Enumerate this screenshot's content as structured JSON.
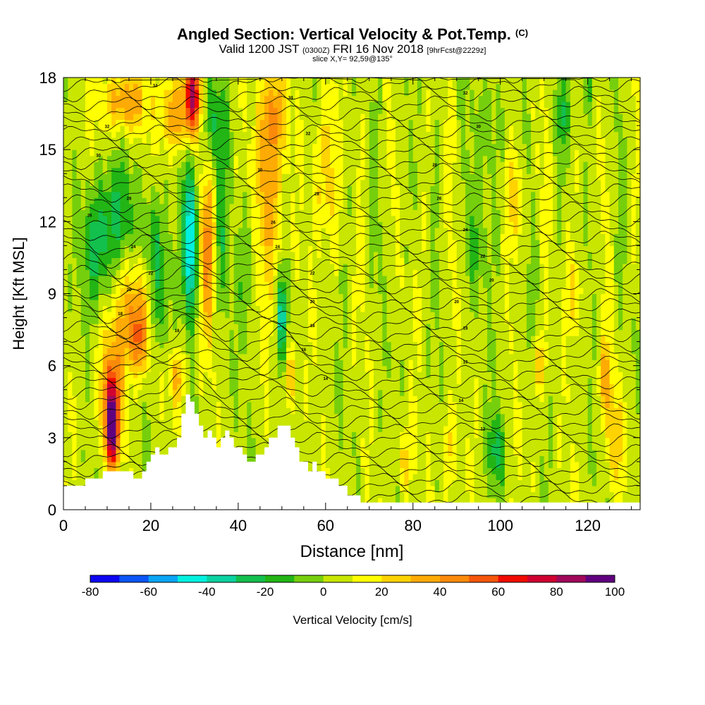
{
  "header": {
    "title": "Angled Section: Vertical Velocity & Pot.Temp.",
    "title_unit": "(C)",
    "valid_prefix": "Valid 1200 JST",
    "valid_utc": "(0300Z)",
    "valid_date": "FRI 16 Nov 2018",
    "forecast_info": "[9hrFcst@2229z]",
    "slice_info": "slice X,Y= 92,59@135°"
  },
  "chart_data": {
    "type": "heatmap",
    "xlabel": "Distance [nm]",
    "ylabel": "Height [Kft MSL]",
    "xlim": [
      0,
      132
    ],
    "ylim": [
      0,
      18
    ],
    "x_ticks": [
      0,
      20,
      40,
      60,
      80,
      100,
      120
    ],
    "y_ticks": [
      0,
      3,
      6,
      9,
      12,
      15,
      18
    ],
    "colorbar": {
      "label": "Vertical Velocity [cm/s]",
      "tick_values": [
        -80,
        -60,
        -40,
        -20,
        0,
        20,
        40,
        60,
        80,
        100
      ],
      "range": [
        -80,
        100
      ],
      "step": 10,
      "colors": [
        "#0d05f0",
        "#0a55f5",
        "#0aa5f5",
        "#00f0e0",
        "#0ad2a0",
        "#13c04e",
        "#22b515",
        "#76cf0c",
        "#c8e600",
        "#ffff00",
        "#ffd300",
        "#ffab05",
        "#fb8a0a",
        "#f5560a",
        "#f00a00",
        "#d00030",
        "#a0085a",
        "#60007e"
      ]
    },
    "terrain": {
      "note": "white area = terrain; height in Kft at each distance (nm)",
      "points": [
        [
          0,
          1
        ],
        [
          5,
          1
        ],
        [
          5,
          1.3
        ],
        [
          9,
          1.3
        ],
        [
          9,
          1.6
        ],
        [
          16,
          1.6
        ],
        [
          16,
          1.3
        ],
        [
          18,
          1.3
        ],
        [
          18,
          1.6
        ],
        [
          19,
          1.6
        ],
        [
          19,
          2
        ],
        [
          20,
          2
        ],
        [
          20,
          2.3
        ],
        [
          21,
          2.3
        ],
        [
          21,
          2.6
        ],
        [
          22,
          2.6
        ],
        [
          22,
          2.3
        ],
        [
          24,
          2.3
        ],
        [
          24,
          2.6
        ],
        [
          26,
          2.6
        ],
        [
          26,
          3
        ],
        [
          27,
          3
        ],
        [
          27,
          4
        ],
        [
          28,
          4
        ],
        [
          28,
          4.8
        ],
        [
          29,
          4.8
        ],
        [
          29,
          4.5
        ],
        [
          30,
          4.5
        ],
        [
          30,
          4
        ],
        [
          31,
          4
        ],
        [
          31,
          3.5
        ],
        [
          32,
          3.5
        ],
        [
          32,
          3
        ],
        [
          33,
          3
        ],
        [
          33,
          3.3
        ],
        [
          34,
          3.3
        ],
        [
          34,
          3
        ],
        [
          35,
          3
        ],
        [
          35,
          2.6
        ],
        [
          36,
          2.6
        ],
        [
          36,
          3
        ],
        [
          37,
          3
        ],
        [
          37,
          3.3
        ],
        [
          38,
          3.3
        ],
        [
          38,
          3
        ],
        [
          39,
          3
        ],
        [
          39,
          2.6
        ],
        [
          41,
          2.6
        ],
        [
          41,
          2.3
        ],
        [
          42,
          2.3
        ],
        [
          42,
          2
        ],
        [
          44,
          2
        ],
        [
          44,
          2.3
        ],
        [
          46,
          2.3
        ],
        [
          46,
          2.6
        ],
        [
          47,
          2.6
        ],
        [
          47,
          3
        ],
        [
          49,
          3
        ],
        [
          49,
          3.5
        ],
        [
          52,
          3.5
        ],
        [
          52,
          3
        ],
        [
          53,
          3
        ],
        [
          53,
          2.6
        ],
        [
          54,
          2.6
        ],
        [
          54,
          2
        ],
        [
          56,
          2
        ],
        [
          56,
          1.6
        ],
        [
          57,
          1.6
        ],
        [
          57,
          2
        ],
        [
          58,
          2
        ],
        [
          58,
          1.6
        ],
        [
          60,
          1.6
        ],
        [
          60,
          1.3
        ],
        [
          63,
          1.3
        ],
        [
          63,
          1
        ],
        [
          65,
          1
        ],
        [
          65,
          0.6
        ],
        [
          68,
          0.6
        ],
        [
          68,
          0.3
        ],
        [
          132,
          0.3
        ]
      ]
    },
    "velocity_features": [
      {
        "x": 11,
        "y": 3.5,
        "value": 85,
        "sx": 1.6,
        "sy": 1.8
      },
      {
        "x": 11,
        "y": 5.5,
        "value": 30,
        "sx": 3,
        "sy": 2.5
      },
      {
        "x": 16,
        "y": 8.5,
        "value": 30,
        "sx": 3.5,
        "sy": 2
      },
      {
        "x": 17,
        "y": 7,
        "value": 35,
        "sx": 2.5,
        "sy": 1.5
      },
      {
        "x": 8,
        "y": 11,
        "value": -30,
        "sx": 3.5,
        "sy": 2.5
      },
      {
        "x": 13,
        "y": 12.5,
        "value": -22,
        "sx": 4,
        "sy": 2
      },
      {
        "x": 22,
        "y": 9,
        "value": -28,
        "sx": 2,
        "sy": 2.5
      },
      {
        "x": 20,
        "y": 11.5,
        "value": -22,
        "sx": 2,
        "sy": 1.8
      },
      {
        "x": 29,
        "y": 10.5,
        "value": -50,
        "sx": 1.6,
        "sy": 2.5
      },
      {
        "x": 29,
        "y": 13,
        "value": -28,
        "sx": 1.6,
        "sy": 2
      },
      {
        "x": 29.5,
        "y": 17.2,
        "value": 75,
        "sx": 1.8,
        "sy": 1.5
      },
      {
        "x": 25,
        "y": 16.5,
        "value": 35,
        "sx": 3,
        "sy": 1.5
      },
      {
        "x": 14,
        "y": 17,
        "value": 35,
        "sx": 5,
        "sy": 1.2
      },
      {
        "x": 33,
        "y": 11,
        "value": 38,
        "sx": 1.8,
        "sy": 3.5
      },
      {
        "x": 36,
        "y": 11,
        "value": -20,
        "sx": 1.6,
        "sy": 3
      },
      {
        "x": 42,
        "y": 10,
        "value": -18,
        "sx": 1.8,
        "sy": 2.5
      },
      {
        "x": 47,
        "y": 13,
        "value": 32,
        "sx": 2.8,
        "sy": 4
      },
      {
        "x": 50,
        "y": 8,
        "value": -38,
        "sx": 1.3,
        "sy": 1.8
      },
      {
        "x": 52,
        "y": 5.5,
        "value": 25,
        "sx": 1.3,
        "sy": 1.5
      },
      {
        "x": 35,
        "y": 16,
        "value": -25,
        "sx": 3,
        "sy": 2
      },
      {
        "x": 48,
        "y": 16.5,
        "value": 30,
        "sx": 3,
        "sy": 1.8
      },
      {
        "x": 26,
        "y": 5.5,
        "value": 30,
        "sx": 1.5,
        "sy": 1.2
      },
      {
        "x": 60,
        "y": 14,
        "value": 20,
        "sx": 3,
        "sy": 3
      },
      {
        "x": 97,
        "y": 16,
        "value": -18,
        "sx": 2,
        "sy": 2.5
      },
      {
        "x": 95,
        "y": 11,
        "value": -15,
        "sx": 2.5,
        "sy": 2
      },
      {
        "x": 104,
        "y": 13,
        "value": 18,
        "sx": 2,
        "sy": 2
      },
      {
        "x": 99,
        "y": 2.5,
        "value": -30,
        "sx": 1.8,
        "sy": 1.5
      },
      {
        "x": 88,
        "y": 2.5,
        "value": 20,
        "sx": 1.5,
        "sy": 1.8
      },
      {
        "x": 78,
        "y": 2,
        "value": 20,
        "sx": 1.5,
        "sy": 1.5
      },
      {
        "x": 109,
        "y": 6,
        "value": 25,
        "sx": 1.5,
        "sy": 1.2
      },
      {
        "x": 124,
        "y": 5.5,
        "value": 28,
        "sx": 1.5,
        "sy": 1.5
      },
      {
        "x": 126,
        "y": 3,
        "value": 22,
        "sx": 2,
        "sy": 2
      },
      {
        "x": 117,
        "y": 9,
        "value": 20,
        "sx": 2,
        "sy": 1.5
      },
      {
        "x": 114,
        "y": 16.5,
        "value": -18,
        "sx": 2,
        "sy": 1.5
      },
      {
        "x": 120,
        "y": 17.5,
        "value": -15,
        "sx": 2,
        "sy": 1
      }
    ],
    "isentropes": {
      "series": [
        "theta-isentropes"
      ],
      "labels": [
        {
          "x": 21,
          "y": 17.6,
          "text": "34"
        },
        {
          "x": 52,
          "y": 17.1,
          "text": "34"
        },
        {
          "x": 92,
          "y": 17.3,
          "text": "32"
        },
        {
          "x": 10,
          "y": 15.9,
          "text": "32"
        },
        {
          "x": 56,
          "y": 15.6,
          "text": "32"
        },
        {
          "x": 95,
          "y": 15.9,
          "text": "30"
        },
        {
          "x": 8,
          "y": 14.7,
          "text": "30"
        },
        {
          "x": 45,
          "y": 14.1,
          "text": "30"
        },
        {
          "x": 85,
          "y": 14.3,
          "text": "28"
        },
        {
          "x": 15,
          "y": 12.9,
          "text": "28"
        },
        {
          "x": 58,
          "y": 13.1,
          "text": "28"
        },
        {
          "x": 86,
          "y": 12.9,
          "text": "26"
        },
        {
          "x": 6,
          "y": 12.2,
          "text": "26"
        },
        {
          "x": 48,
          "y": 11.9,
          "text": "26"
        },
        {
          "x": 92,
          "y": 11.6,
          "text": "24"
        },
        {
          "x": 16,
          "y": 10.9,
          "text": "24"
        },
        {
          "x": 49,
          "y": 10.9,
          "text": "24"
        },
        {
          "x": 96,
          "y": 10.5,
          "text": "22"
        },
        {
          "x": 20,
          "y": 9.8,
          "text": "22"
        },
        {
          "x": 57,
          "y": 9.8,
          "text": "22"
        },
        {
          "x": 98,
          "y": 9.5,
          "text": "20"
        },
        {
          "x": 15,
          "y": 9.1,
          "text": "20"
        },
        {
          "x": 57,
          "y": 8.6,
          "text": "20"
        },
        {
          "x": 90,
          "y": 8.6,
          "text": "20"
        },
        {
          "x": 13,
          "y": 8.1,
          "text": "18"
        },
        {
          "x": 57,
          "y": 7.6,
          "text": "18"
        },
        {
          "x": 92,
          "y": 7.5,
          "text": "18"
        },
        {
          "x": 26,
          "y": 7.4,
          "text": "16"
        },
        {
          "x": 55,
          "y": 6.6,
          "text": "16"
        },
        {
          "x": 92,
          "y": 6.1,
          "text": "16"
        },
        {
          "x": 60,
          "y": 5.4,
          "text": "14"
        },
        {
          "x": 91,
          "y": 4.5,
          "text": "14"
        },
        {
          "x": 96,
          "y": 3.3,
          "text": "12"
        }
      ]
    }
  }
}
